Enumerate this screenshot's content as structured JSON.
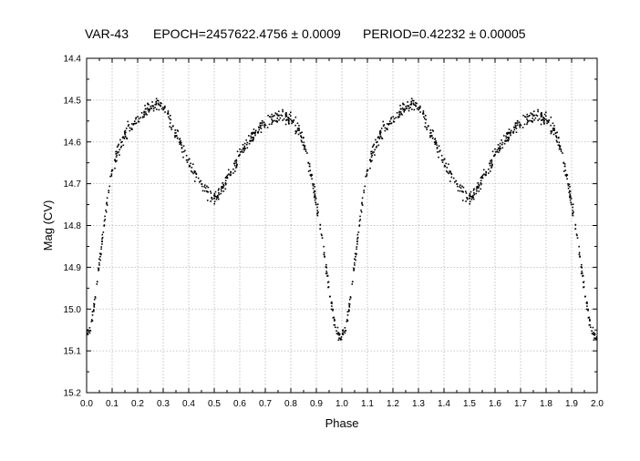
{
  "header": {
    "star": "VAR-43",
    "epoch": "EPOCH=2457622.4756 ± 0.0009",
    "period": "PERIOD=0.42232 ± 0.00005"
  },
  "chart_data": {
    "type": "scatter",
    "xlabel": "Phase",
    "ylabel": "Mag (CV)",
    "xlim": [
      0.0,
      2.0
    ],
    "ylim": [
      15.2,
      14.4
    ],
    "y_inverted": true,
    "grid": true,
    "x_ticks": [
      "0.0",
      "0.1",
      "0.2",
      "0.3",
      "0.4",
      "0.5",
      "0.6",
      "0.7",
      "0.8",
      "0.9",
      "1.0",
      "1.1",
      "1.2",
      "1.3",
      "1.4",
      "1.5",
      "1.6",
      "1.7",
      "1.8",
      "1.9",
      "2.0"
    ],
    "y_ticks": [
      "14.4",
      "14.5",
      "14.6",
      "14.7",
      "14.8",
      "14.9",
      "15.0",
      "15.1",
      "15.2"
    ],
    "marker_color": "#000000",
    "series": [
      {
        "light_curve_phase_0_to_1": [
          [
            0.0,
            15.07
          ],
          [
            0.02,
            15.03
          ],
          [
            0.04,
            14.94
          ],
          [
            0.06,
            14.84
          ],
          [
            0.08,
            14.74
          ],
          [
            0.1,
            14.67
          ],
          [
            0.13,
            14.61
          ],
          [
            0.16,
            14.57
          ],
          [
            0.2,
            14.545
          ],
          [
            0.24,
            14.52
          ],
          [
            0.27,
            14.505
          ],
          [
            0.3,
            14.515
          ],
          [
            0.33,
            14.55
          ],
          [
            0.36,
            14.59
          ],
          [
            0.4,
            14.65
          ],
          [
            0.44,
            14.69
          ],
          [
            0.47,
            14.72
          ],
          [
            0.5,
            14.735
          ],
          [
            0.53,
            14.71
          ],
          [
            0.57,
            14.67
          ],
          [
            0.61,
            14.62
          ],
          [
            0.65,
            14.585
          ],
          [
            0.69,
            14.56
          ],
          [
            0.73,
            14.545
          ],
          [
            0.77,
            14.535
          ],
          [
            0.8,
            14.545
          ],
          [
            0.83,
            14.57
          ],
          [
            0.86,
            14.62
          ],
          [
            0.89,
            14.71
          ],
          [
            0.92,
            14.82
          ],
          [
            0.95,
            14.95
          ],
          [
            0.97,
            15.03
          ],
          [
            0.985,
            15.065
          ],
          [
            1.0,
            15.07
          ]
        ]
      }
    ]
  }
}
